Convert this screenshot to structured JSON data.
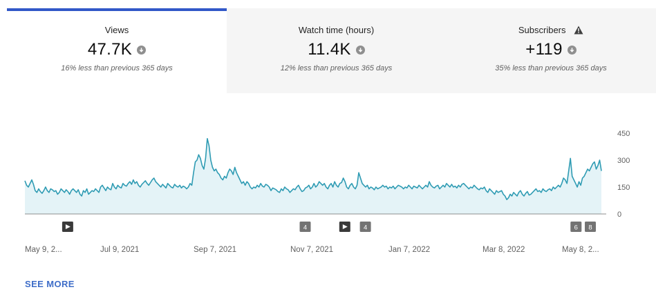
{
  "tabs": [
    {
      "label": "Views",
      "value": "47.7K",
      "comparison": "16% less than previous 365 days",
      "trend_icon": "arrow-down-circle-icon",
      "active": true
    },
    {
      "label": "Watch time (hours)",
      "value": "11.4K",
      "comparison": "12% less than previous 365 days",
      "trend_icon": "arrow-down-circle-icon",
      "active": false
    },
    {
      "label": "Subscribers",
      "value": "+119",
      "comparison": "35% less than previous 365 days",
      "trend_icon": "arrow-down-circle-icon",
      "warning_icon": "warning-triangle-icon",
      "active": false
    }
  ],
  "colors": {
    "accent": "#3158c8",
    "line": "#2e9bb3",
    "fill": "#e4f3f7",
    "link": "#3e6dc8"
  },
  "chart_data": {
    "type": "area",
    "x_start": "May 9, 2021",
    "x_end": "May 8, 2022",
    "x_tick_labels": [
      "May 9, 2...",
      "Jul 9, 2021",
      "Sep 7, 2021",
      "Nov 7, 2021",
      "Jan 7, 2022",
      "Mar 8, 2022",
      "May 8, 2..."
    ],
    "y_ticks": [
      0,
      150,
      300,
      450
    ],
    "ylim": [
      0,
      450
    ],
    "grid": false,
    "series": [
      {
        "values": [
          185,
          160,
          150,
          170,
          190,
          165,
          130,
          120,
          140,
          125,
          115,
          130,
          150,
          130,
          120,
          140,
          135,
          125,
          130,
          110,
          120,
          140,
          130,
          120,
          135,
          125,
          110,
          130,
          140,
          130,
          120,
          135,
          110,
          100,
          130,
          120,
          140,
          110,
          120,
          130,
          125,
          140,
          130,
          120,
          150,
          160,
          145,
          130,
          150,
          140,
          135,
          170,
          150,
          140,
          160,
          150,
          145,
          170,
          160,
          155,
          170,
          180,
          165,
          190,
          170,
          180,
          160,
          150,
          165,
          175,
          185,
          170,
          160,
          175,
          190,
          200,
          180,
          170,
          160,
          150,
          165,
          155,
          145,
          170,
          160,
          150,
          145,
          165,
          155,
          150,
          160,
          145,
          155,
          150,
          140,
          150,
          170,
          160,
          230,
          290,
          300,
          330,
          310,
          270,
          250,
          310,
          420,
          380,
          300,
          260,
          240,
          250,
          230,
          220,
          200,
          190,
          210,
          200,
          230,
          250,
          240,
          220,
          260,
          230,
          210,
          190,
          170,
          180,
          160,
          180,
          170,
          150,
          140,
          150,
          145,
          160,
          150,
          170,
          155,
          150,
          165,
          160,
          150,
          130,
          145,
          140,
          135,
          125,
          120,
          140,
          130,
          150,
          140,
          135,
          120,
          130,
          140,
          135,
          150,
          160,
          140,
          125,
          130,
          145,
          150,
          160,
          140,
          150,
          170,
          150,
          160,
          180,
          170,
          160,
          170,
          150,
          140,
          160,
          170,
          150,
          180,
          160,
          150,
          170,
          175,
          200,
          180,
          150,
          140,
          160,
          170,
          150,
          140,
          160,
          230,
          200,
          170,
          160,
          150,
          160,
          140,
          150,
          145,
          135,
          150,
          140,
          145,
          150,
          160,
          150,
          155,
          140,
          150,
          145,
          155,
          140,
          150,
          160,
          155,
          150,
          140,
          150,
          145,
          160,
          150,
          140,
          155,
          150,
          145,
          160,
          150,
          140,
          150,
          160,
          150,
          180,
          160,
          150,
          145,
          155,
          160,
          140,
          150,
          160,
          150,
          170,
          160,
          150,
          165,
          150,
          155,
          145,
          160,
          150,
          165,
          170,
          160,
          150,
          140,
          150,
          145,
          160,
          150,
          140,
          135,
          145,
          140,
          150,
          130,
          120,
          140,
          130,
          120,
          110,
          130,
          120,
          125,
          130,
          110,
          100,
          80,
          90,
          110,
          100,
          120,
          110,
          100,
          120,
          130,
          110,
          100,
          115,
          125,
          105,
          110,
          120,
          130,
          140,
          125,
          130,
          120,
          140,
          130,
          125,
          135,
          140,
          130,
          150,
          140,
          150,
          160,
          150,
          170,
          200,
          190,
          170,
          240,
          310,
          210,
          190,
          170,
          150,
          180,
          160,
          200,
          210,
          230,
          250,
          240,
          260,
          280,
          290,
          250,
          270,
          300,
          240
        ]
      }
    ]
  },
  "annotations": [
    {
      "kind": "play",
      "date": "Jun 5, 2021"
    },
    {
      "kind": "count",
      "text": "4",
      "date": "Nov 2, 2021"
    },
    {
      "kind": "play",
      "date": "Nov 27, 2021"
    },
    {
      "kind": "count",
      "text": "4",
      "date": "Dec 10, 2021"
    },
    {
      "kind": "count",
      "text": "6",
      "date": "Apr 22, 2022"
    },
    {
      "kind": "count",
      "text": "8",
      "date": "May 1, 2022"
    }
  ],
  "see_more_label": "SEE MORE"
}
